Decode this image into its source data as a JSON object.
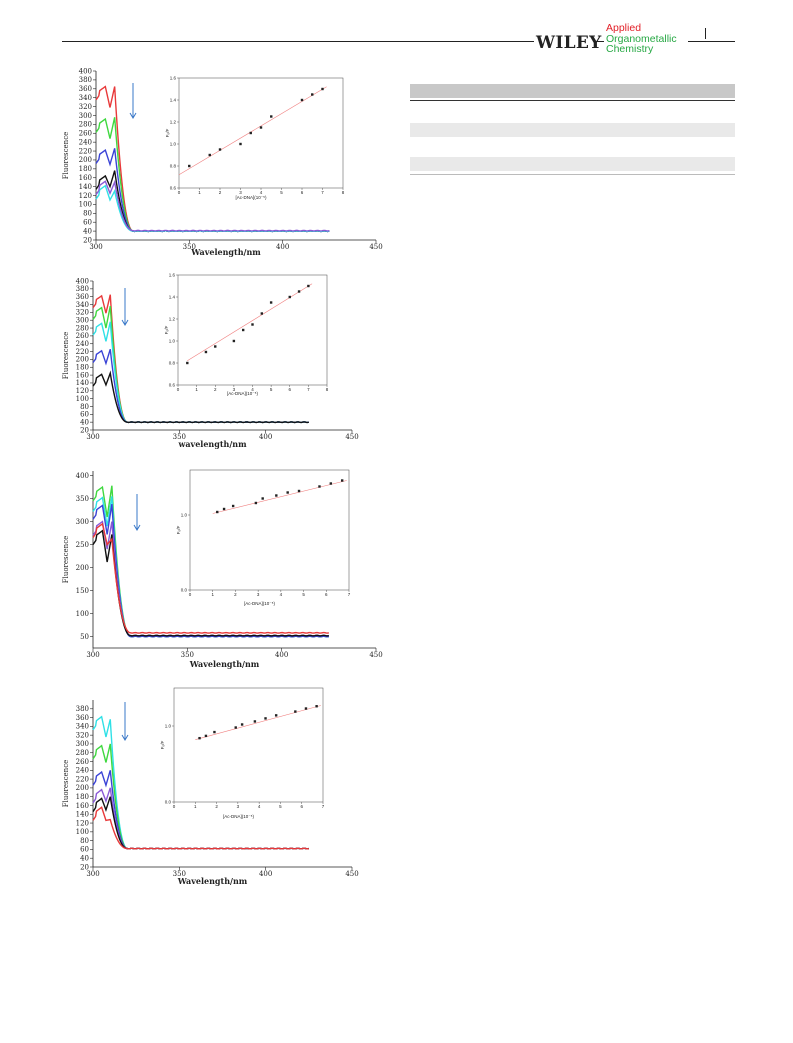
{
  "header": {
    "publisher": "WILEY",
    "journal_lines": [
      "Applied",
      "Organometallic",
      "Chemistry"
    ]
  },
  "colors": {
    "red": "#e8393a",
    "green": "#3fd83f",
    "blue": "#3a43d6",
    "black": "#111111",
    "cyan": "#2fe0e6",
    "purple": "#8a5ad6",
    "arrow": "#3a78c8",
    "fit": "#f08080",
    "table_header": "#c8c8c8",
    "table_stripe": "#e9e9e9"
  },
  "chart_data": [
    {
      "type": "line",
      "panel": 1,
      "title": "",
      "xlabel": "Wavelength/nm",
      "ylabel": "Fluorescence",
      "xlim": [
        300,
        450
      ],
      "ylim": [
        20,
        400
      ],
      "x_ticks": [
        300,
        350,
        400,
        450
      ],
      "y_ticks": [
        20,
        40,
        60,
        80,
        100,
        120,
        140,
        160,
        180,
        200,
        220,
        240,
        260,
        280,
        300,
        320,
        340,
        360,
        380,
        400
      ],
      "series": [
        {
          "color": "red",
          "peak1": 365,
          "valley": 318,
          "peak2": 365,
          "tail": 40
        },
        {
          "color": "green",
          "peak1": 292,
          "valley": 248,
          "peak2": 296,
          "tail": 40
        },
        {
          "color": "blue",
          "peak1": 222,
          "valley": 190,
          "peak2": 226,
          "tail": 40
        },
        {
          "color": "black",
          "peak1": 164,
          "valley": 140,
          "peak2": 176,
          "tail": 40
        },
        {
          "color": "cyan",
          "peak1": 142,
          "valley": 110,
          "peak2": 130,
          "tail": 40
        },
        {
          "color": "purple",
          "peak1": 152,
          "valley": 125,
          "peak2": 150,
          "tail": 41
        }
      ],
      "inset": {
        "xlabel": "[Ac-DNA](10⁻⁵)",
        "ylabel": "F₀/F",
        "xlim": [
          0,
          8
        ],
        "ylim": [
          0.6,
          1.6
        ],
        "x_ticks": [
          0,
          1,
          2,
          3,
          4,
          5,
          6,
          7,
          8
        ],
        "y_ticks": [
          0.6,
          0.8,
          1.0,
          1.2,
          1.4,
          1.6
        ],
        "x": [
          0.5,
          1.5,
          2.0,
          3.0,
          3.5,
          4.0,
          4.5,
          6.0,
          6.5,
          7.0
        ],
        "y": [
          0.8,
          0.9,
          0.95,
          1.0,
          1.1,
          1.15,
          1.25,
          1.4,
          1.45,
          1.5
        ],
        "fit": [
          [
            0.0,
            0.72
          ],
          [
            7.2,
            1.52
          ]
        ]
      }
    },
    {
      "type": "line",
      "panel": 2,
      "title": "",
      "xlabel": "wavelength/nm",
      "ylabel": "Fluorescence",
      "xlim": [
        300,
        450
      ],
      "ylim": [
        20,
        400
      ],
      "x_ticks": [
        300,
        350,
        400,
        450
      ],
      "y_ticks": [
        20,
        40,
        60,
        80,
        100,
        120,
        140,
        160,
        180,
        200,
        220,
        240,
        260,
        280,
        300,
        320,
        340,
        360,
        380,
        400
      ],
      "series": [
        {
          "color": "red",
          "peak1": 362,
          "valley": 318,
          "peak2": 365,
          "tail": 40
        },
        {
          "color": "green",
          "peak1": 332,
          "valley": 280,
          "peak2": 336,
          "tail": 40
        },
        {
          "color": "cyan",
          "peak1": 292,
          "valley": 246,
          "peak2": 296,
          "tail": 40
        },
        {
          "color": "blue",
          "peak1": 222,
          "valley": 190,
          "peak2": 226,
          "tail": 40
        },
        {
          "color": "black",
          "peak1": 162,
          "valley": 135,
          "peak2": 165,
          "tail": 40
        }
      ],
      "inset": {
        "xlabel": "[Ac-DNA](10⁻⁵)",
        "ylabel": "F₀/F",
        "xlim": [
          0,
          8
        ],
        "ylim": [
          0.6,
          1.6
        ],
        "x_ticks": [
          0,
          1,
          2,
          3,
          4,
          5,
          6,
          7,
          8
        ],
        "y_ticks": [
          0.6,
          0.8,
          1.0,
          1.2,
          1.4,
          1.6
        ],
        "x": [
          0.5,
          1.5,
          2.0,
          3.0,
          3.5,
          4.0,
          4.5,
          5.0,
          6.0,
          6.5,
          7.0
        ],
        "y": [
          0.8,
          0.9,
          0.95,
          1.0,
          1.1,
          1.15,
          1.25,
          1.35,
          1.4,
          1.45,
          1.5
        ],
        "fit": [
          [
            0.5,
            0.82
          ],
          [
            7.2,
            1.52
          ]
        ]
      }
    },
    {
      "type": "line",
      "panel": 3,
      "title": "",
      "xlabel": "Wavelength/nm",
      "ylabel": "Fluorescence",
      "xlim": [
        300,
        450
      ],
      "ylim": [
        25,
        410
      ],
      "x_ticks": [
        300,
        350,
        400,
        450
      ],
      "y_ticks": [
        50,
        100,
        150,
        200,
        250,
        300,
        350,
        400
      ],
      "series": [
        {
          "color": "green",
          "peak1": 375,
          "valley": 310,
          "peak2": 378,
          "tail": 50
        },
        {
          "color": "cyan",
          "peak1": 352,
          "valley": 290,
          "peak2": 355,
          "tail": 50
        },
        {
          "color": "blue",
          "peak1": 335,
          "valley": 272,
          "peak2": 338,
          "tail": 50
        },
        {
          "color": "purple",
          "peak1": 300,
          "valley": 240,
          "peak2": 300,
          "tail": 52
        },
        {
          "color": "black",
          "peak1": 280,
          "valley": 212,
          "peak2": 272,
          "tail": 52
        },
        {
          "color": "red",
          "peak1": 295,
          "valley": 250,
          "peak2": 262,
          "tail": 58
        }
      ],
      "inset": {
        "xlabel": "[Ac-DNA](10⁻⁵)",
        "ylabel": "F₀/F",
        "xlim": [
          0,
          7
        ],
        "ylim": [
          0.0,
          1.6
        ],
        "x_ticks": [
          0,
          1,
          2,
          3,
          4,
          5,
          6,
          7
        ],
        "y_ticks": [
          0.0,
          1.0
        ],
        "x": [
          1.2,
          1.5,
          1.9,
          2.9,
          3.2,
          3.8,
          4.3,
          4.8,
          5.7,
          6.2,
          6.7
        ],
        "y": [
          1.04,
          1.08,
          1.12,
          1.16,
          1.22,
          1.26,
          1.3,
          1.32,
          1.38,
          1.42,
          1.46
        ],
        "fit": [
          [
            1.0,
            1.02
          ],
          [
            6.9,
            1.46
          ]
        ]
      }
    },
    {
      "type": "line",
      "panel": 4,
      "title": "",
      "xlabel": "Wavelength/nm",
      "ylabel": "Fluorescence",
      "xlim": [
        300,
        450
      ],
      "ylim": [
        20,
        400
      ],
      "x_ticks": [
        300,
        350,
        400,
        450
      ],
      "y_ticks": [
        20,
        40,
        60,
        80,
        100,
        120,
        140,
        160,
        180,
        200,
        220,
        240,
        260,
        280,
        300,
        320,
        340,
        360,
        380
      ],
      "series": [
        {
          "color": "cyan",
          "peak1": 362,
          "valley": 316,
          "peak2": 356,
          "tail": 62
        },
        {
          "color": "green",
          "peak1": 296,
          "valley": 258,
          "peak2": 300,
          "tail": 62
        },
        {
          "color": "blue",
          "peak1": 236,
          "valley": 206,
          "peak2": 240,
          "tail": 62
        },
        {
          "color": "purple",
          "peak1": 196,
          "valley": 170,
          "peak2": 200,
          "tail": 62
        },
        {
          "color": "black",
          "peak1": 176,
          "valley": 150,
          "peak2": 180,
          "tail": 62
        },
        {
          "color": "red",
          "peak1": 156,
          "valley": 126,
          "peak2": 128,
          "tail": 62
        }
      ],
      "inset": {
        "xlabel": "[Ac-DNA](10⁻⁵)",
        "ylabel": "F₀/F",
        "xlim": [
          0,
          7
        ],
        "ylim": [
          0.0,
          1.5
        ],
        "x_ticks": [
          0,
          1,
          2,
          3,
          4,
          5,
          6,
          7
        ],
        "y_ticks": [
          0.0,
          1.0
        ],
        "x": [
          1.2,
          1.5,
          1.9,
          2.9,
          3.2,
          3.8,
          4.3,
          4.8,
          5.7,
          6.2,
          6.7
        ],
        "y": [
          0.84,
          0.87,
          0.92,
          0.98,
          1.02,
          1.06,
          1.1,
          1.14,
          1.19,
          1.23,
          1.26
        ],
        "fit": [
          [
            1.0,
            0.82
          ],
          [
            6.9,
            1.27
          ]
        ]
      }
    }
  ]
}
